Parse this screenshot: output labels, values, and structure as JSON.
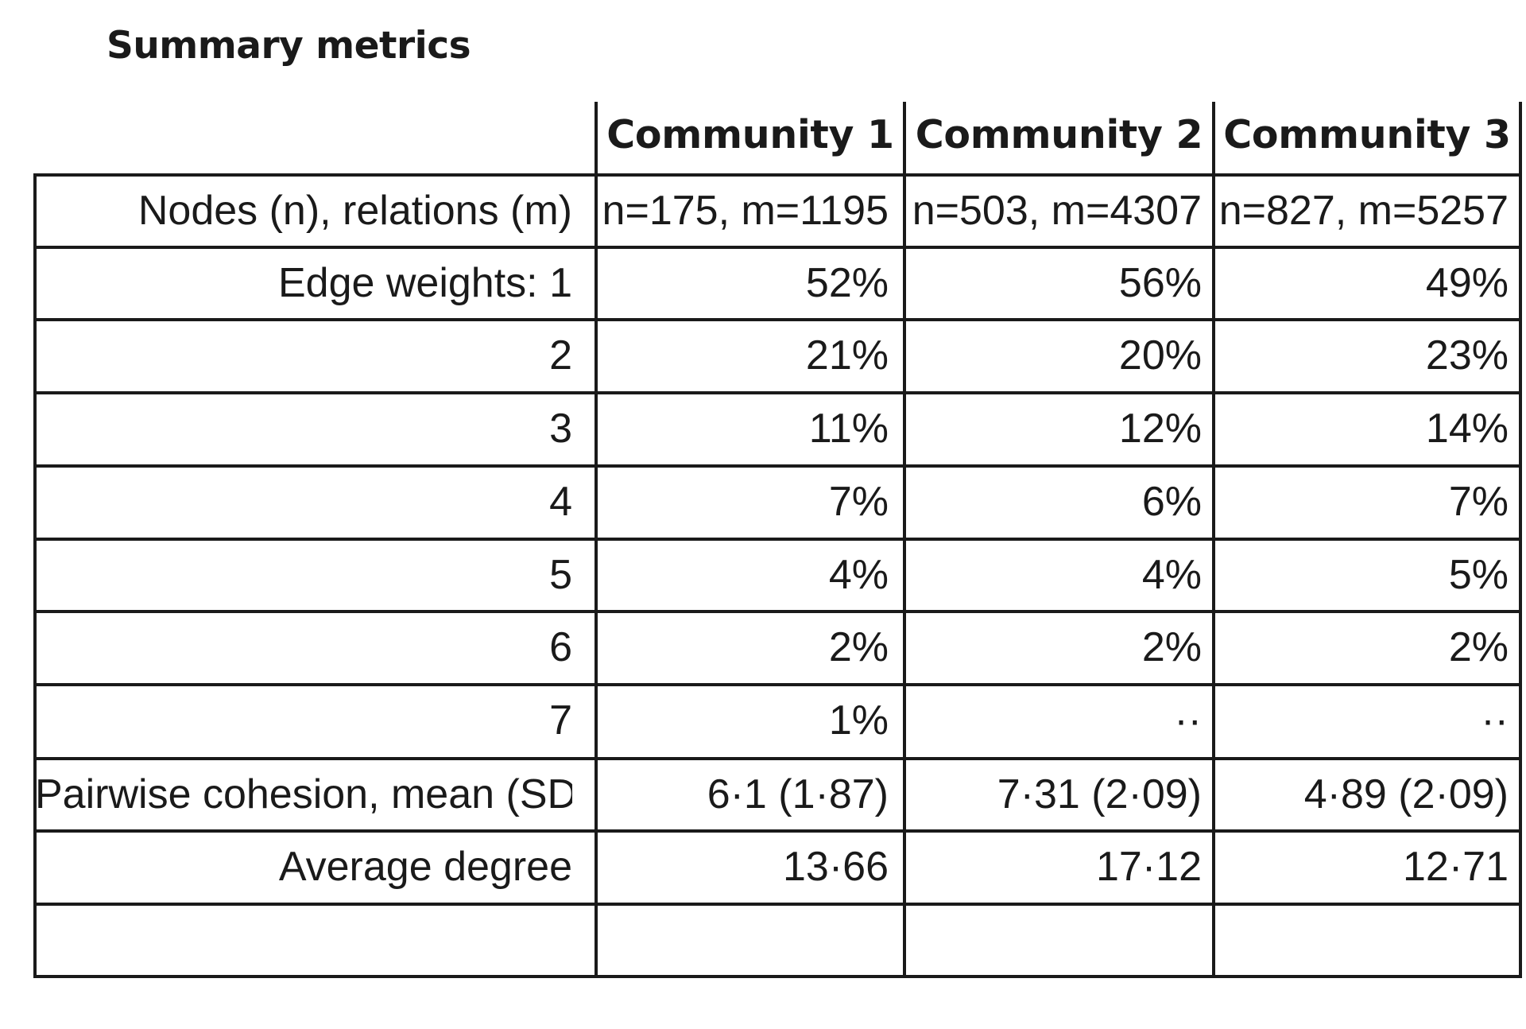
{
  "title": "Summary metrics",
  "columns": [
    "Community 1",
    "Community 2",
    "Community 3"
  ],
  "rows": [
    {
      "label": "Nodes (n), relations (m)",
      "values": [
        "n=175, m=1195",
        "n=503, m=4307",
        "n=827, m=5257"
      ]
    },
    {
      "label": "Edge weights: 1",
      "values": [
        "52%",
        "56%",
        "49%"
      ]
    },
    {
      "label": "2",
      "values": [
        "21%",
        "20%",
        "23%"
      ]
    },
    {
      "label": "3",
      "values": [
        "11%",
        "12%",
        "14%"
      ]
    },
    {
      "label": "4",
      "values": [
        "7%",
        "6%",
        "7%"
      ]
    },
    {
      "label": "5",
      "values": [
        "4%",
        "4%",
        "5%"
      ]
    },
    {
      "label": "6",
      "values": [
        "2%",
        "2%",
        "2%"
      ]
    },
    {
      "label": "7",
      "values": [
        "1%",
        "··",
        "··"
      ]
    },
    {
      "label": "Pairwise cohesion, mean (SD)",
      "values": [
        "6·1 (1·87)",
        "7·31 (2·09)",
        "4·89 (2·09)"
      ]
    },
    {
      "label": "Average degree",
      "values": [
        "13·66",
        "17·12",
        "12·71"
      ]
    },
    {
      "label": "",
      "values": [
        "",
        "",
        ""
      ]
    }
  ]
}
